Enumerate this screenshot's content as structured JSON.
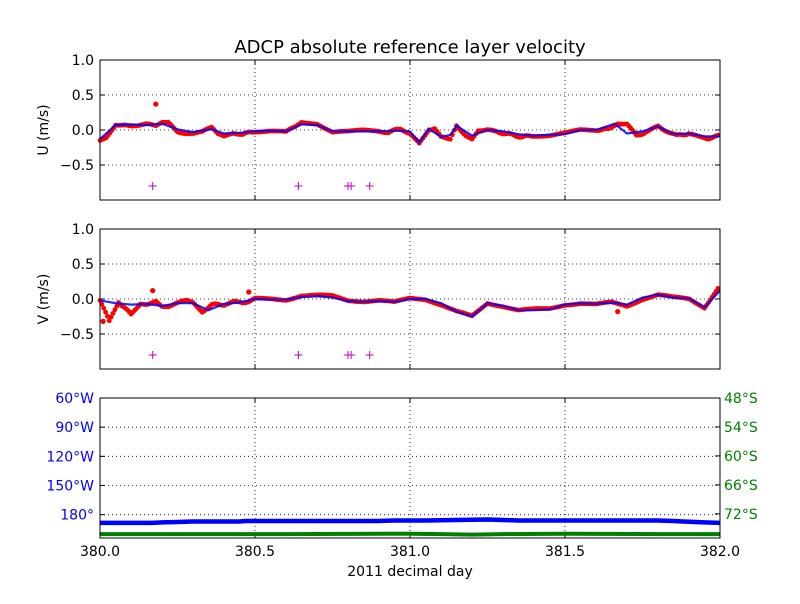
{
  "title": "ADCP absolute reference layer velocity",
  "colors": {
    "points": "#ff0000",
    "smooth": "#0000ff",
    "flags": "#bf00bf",
    "lon": "#0000ff",
    "lat": "#008000",
    "grid": "#000000"
  },
  "chart_data": [
    {
      "type": "scatter",
      "ylabel": "U (m/s)",
      "xlim": [
        380.0,
        382.0
      ],
      "ylim": [
        -1.0,
        1.0
      ],
      "yticks": [
        {
          "value": 1.0,
          "label": "1.0"
        },
        {
          "value": 0.5,
          "label": "0.5"
        },
        {
          "value": 0.0,
          "label": "0.0"
        },
        {
          "value": -0.5,
          "label": "−0.5"
        }
      ],
      "grid": true,
      "series": [
        {
          "role": "measured",
          "marker": "dot",
          "x": [
            380.0,
            380.02,
            380.05,
            380.08,
            380.1,
            380.12,
            380.15,
            380.18,
            380.2,
            380.22,
            380.25,
            380.28,
            380.3,
            380.33,
            380.36,
            380.38,
            380.4,
            380.43,
            380.46,
            380.5,
            380.55,
            380.6,
            380.63,
            380.65,
            380.7,
            380.75,
            380.78,
            380.8,
            380.85,
            380.9,
            380.93,
            380.97,
            381.0,
            381.03,
            381.06,
            381.08,
            381.1,
            381.13,
            381.15,
            381.18,
            381.2,
            381.22,
            381.25,
            381.28,
            381.32,
            381.36,
            381.4,
            381.45,
            381.5,
            381.55,
            381.6,
            381.64,
            381.67,
            381.7,
            381.73,
            381.77,
            381.8,
            381.83,
            381.86,
            381.9,
            381.93,
            381.96,
            382.0
          ],
          "y": [
            -0.15,
            -0.12,
            0.08,
            0.07,
            0.06,
            0.07,
            0.08,
            0.06,
            0.1,
            0.1,
            -0.02,
            -0.05,
            -0.04,
            -0.03,
            0.04,
            -0.06,
            -0.1,
            -0.04,
            -0.06,
            -0.02,
            -0.01,
            -0.03,
            0.05,
            0.1,
            0.09,
            -0.02,
            -0.03,
            -0.02,
            -0.01,
            -0.02,
            -0.03,
            0.02,
            -0.05,
            -0.2,
            0.0,
            0.02,
            -0.1,
            -0.12,
            0.07,
            -0.08,
            -0.12,
            0.0,
            0.0,
            -0.03,
            -0.06,
            -0.1,
            -0.08,
            -0.08,
            -0.05,
            0.0,
            0.0,
            0.01,
            0.1,
            0.08,
            -0.08,
            -0.02,
            0.06,
            -0.02,
            -0.08,
            -0.05,
            -0.1,
            -0.12,
            -0.08
          ],
          "outliers": [
            {
              "x": 380.18,
              "y": 0.37
            }
          ]
        },
        {
          "role": "smoothed",
          "marker": "line",
          "x": [
            380.0,
            380.05,
            380.1,
            380.15,
            380.2,
            380.25,
            380.3,
            380.36,
            380.4,
            380.45,
            380.5,
            380.55,
            380.6,
            380.65,
            380.7,
            380.75,
            380.8,
            380.85,
            380.9,
            380.95,
            381.0,
            381.03,
            381.06,
            381.1,
            381.13,
            381.15,
            381.2,
            381.25,
            381.3,
            381.35,
            381.4,
            381.5,
            381.55,
            381.6,
            381.66,
            381.7,
            381.75,
            381.8,
            381.85,
            381.9,
            381.95,
            382.0
          ],
          "y": [
            -0.13,
            0.07,
            0.08,
            0.07,
            0.09,
            0.01,
            -0.03,
            0.01,
            -0.05,
            -0.04,
            -0.02,
            -0.01,
            -0.02,
            0.08,
            0.07,
            -0.02,
            -0.02,
            -0.02,
            -0.02,
            -0.01,
            -0.02,
            -0.18,
            0.02,
            -0.1,
            -0.07,
            0.06,
            -0.08,
            0.0,
            -0.02,
            -0.06,
            -0.08,
            -0.06,
            0.0,
            0.0,
            0.09,
            -0.05,
            -0.02,
            0.05,
            -0.06,
            -0.05,
            -0.09,
            -0.09
          ]
        }
      ],
      "flags": {
        "y": -0.8,
        "x": [
          380.17,
          380.64,
          380.8,
          380.81,
          380.87
        ]
      }
    },
    {
      "type": "scatter",
      "ylabel": "V (m/s)",
      "xlim": [
        380.0,
        382.0
      ],
      "ylim": [
        -1.0,
        1.0
      ],
      "yticks": [
        {
          "value": 1.0,
          "label": "1.0"
        },
        {
          "value": 0.5,
          "label": "0.5"
        },
        {
          "value": 0.0,
          "label": "0.0"
        },
        {
          "value": -0.5,
          "label": "−0.5"
        }
      ],
      "grid": true,
      "series": [
        {
          "role": "measured",
          "marker": "dot",
          "x": [
            380.0,
            380.03,
            380.06,
            380.1,
            380.13,
            380.15,
            380.18,
            380.2,
            380.22,
            380.25,
            380.28,
            380.3,
            380.33,
            380.36,
            380.4,
            380.43,
            380.46,
            380.5,
            380.55,
            380.6,
            380.65,
            380.7,
            380.75,
            380.8,
            380.85,
            380.9,
            380.95,
            381.0,
            381.05,
            381.1,
            381.15,
            381.2,
            381.25,
            381.3,
            381.35,
            381.4,
            381.45,
            381.5,
            381.55,
            381.6,
            381.65,
            381.7,
            381.75,
            381.8,
            381.85,
            381.9,
            381.95,
            382.0
          ],
          "y": [
            -0.02,
            -0.32,
            -0.04,
            -0.22,
            -0.06,
            -0.07,
            -0.03,
            -0.1,
            -0.1,
            -0.06,
            -0.02,
            -0.06,
            -0.18,
            -0.08,
            -0.08,
            -0.04,
            -0.06,
            0.0,
            0.0,
            -0.01,
            0.05,
            0.05,
            0.04,
            -0.02,
            -0.03,
            -0.02,
            -0.05,
            0.01,
            0.0,
            -0.08,
            -0.18,
            -0.25,
            -0.06,
            -0.1,
            -0.16,
            -0.15,
            -0.14,
            -0.08,
            -0.06,
            -0.08,
            -0.05,
            -0.1,
            0.0,
            0.06,
            0.02,
            0.0,
            -0.12,
            0.2
          ],
          "outliers": [
            {
              "x": 380.01,
              "y": -0.32
            },
            {
              "x": 380.17,
              "y": 0.12
            },
            {
              "x": 380.48,
              "y": 0.1
            },
            {
              "x": 381.67,
              "y": -0.18
            }
          ]
        },
        {
          "role": "smoothed",
          "marker": "line",
          "x": [
            380.0,
            380.05,
            380.1,
            380.15,
            380.2,
            380.25,
            380.3,
            380.35,
            380.4,
            380.45,
            380.5,
            380.55,
            380.6,
            380.65,
            380.7,
            380.75,
            380.8,
            380.85,
            380.9,
            380.95,
            381.0,
            381.05,
            381.1,
            381.15,
            381.2,
            381.25,
            381.3,
            381.35,
            381.4,
            381.45,
            381.5,
            381.55,
            381.6,
            381.65,
            381.7,
            381.75,
            381.8,
            381.85,
            381.9,
            381.95,
            382.0
          ],
          "y": [
            -0.02,
            -0.06,
            -0.08,
            -0.07,
            -0.1,
            -0.06,
            -0.06,
            -0.16,
            -0.07,
            -0.05,
            0.0,
            -0.01,
            -0.01,
            0.03,
            0.04,
            0.02,
            -0.03,
            -0.04,
            -0.03,
            -0.04,
            0.0,
            0.0,
            -0.06,
            -0.18,
            -0.25,
            -0.06,
            -0.1,
            -0.16,
            -0.16,
            -0.15,
            -0.08,
            -0.06,
            -0.07,
            -0.05,
            -0.08,
            0.02,
            0.06,
            0.02,
            0.01,
            -0.12,
            0.12
          ]
        }
      ],
      "flags": {
        "y": -0.8,
        "x": [
          380.17,
          380.64,
          380.8,
          380.81,
          380.87
        ]
      }
    },
    {
      "type": "line",
      "xlabel": "2011 decimal day",
      "xlim": [
        380.0,
        382.0
      ],
      "xticks": [
        {
          "value": 380.0,
          "label": "380.0"
        },
        {
          "value": 380.5,
          "label": "380.5"
        },
        {
          "value": 381.0,
          "label": "381.0"
        },
        {
          "value": 381.5,
          "label": "381.5"
        },
        {
          "value": 382.0,
          "label": "382.0"
        }
      ],
      "grid": true,
      "left_axis": {
        "ylim": [
          -204,
          -60
        ],
        "ticks": [
          {
            "value": -60,
            "label": "60°W"
          },
          {
            "value": -90,
            "label": "90°W"
          },
          {
            "value": -120,
            "label": "120°W"
          },
          {
            "value": -150,
            "label": "150°W"
          },
          {
            "value": -180,
            "label": "180°"
          }
        ]
      },
      "right_axis": {
        "ylim": [
          -77,
          -48
        ],
        "ticks": [
          {
            "value": -48,
            "label": "48°S"
          },
          {
            "value": -54,
            "label": "54°S"
          },
          {
            "value": -60,
            "label": "60°S"
          },
          {
            "value": -66,
            "label": "66°S"
          },
          {
            "value": -72,
            "label": "72°S"
          }
        ]
      },
      "series": [
        {
          "role": "longitude",
          "axis": "left",
          "x": [
            380.0,
            380.08,
            380.17,
            380.2,
            380.25,
            380.3,
            380.45,
            380.47,
            380.9,
            380.95,
            381.05,
            381.25,
            381.3,
            381.35,
            381.55,
            381.8,
            381.85,
            381.88,
            381.95,
            382.0
          ],
          "y": [
            -188.5,
            -188.5,
            -188.5,
            -188.0,
            -187.5,
            -187.0,
            -187.0,
            -186.5,
            -186.5,
            -186.0,
            -186.0,
            -185.0,
            -185.5,
            -186.0,
            -186.0,
            -186.0,
            -186.5,
            -187.0,
            -188.0,
            -188.5
          ]
        },
        {
          "role": "latitude",
          "axis": "right",
          "x": [
            380.0,
            380.2,
            380.6,
            381.0,
            381.1,
            381.2,
            381.3,
            381.5,
            381.8,
            382.0
          ],
          "y": [
            -76.2,
            -76.2,
            -76.2,
            -76.1,
            -76.2,
            -76.3,
            -76.2,
            -76.1,
            -76.2,
            -76.2
          ]
        }
      ]
    }
  ]
}
